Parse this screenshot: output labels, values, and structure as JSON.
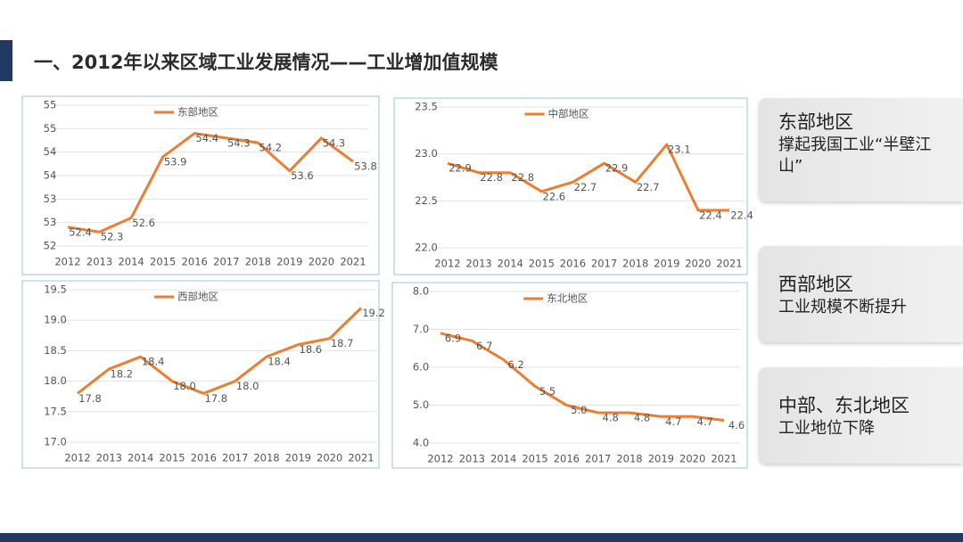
{
  "slide": {
    "title": "一、2012年以来区域工业发展情况——工业增加值规模",
    "notes": [
      {
        "heading": "东部地区",
        "body": "撑起我国工业“半壁江山”"
      },
      {
        "heading": "西部地区",
        "body": "工业规模不断提升"
      },
      {
        "heading": "中部、东北地区",
        "body": "工业地位下降"
      }
    ]
  },
  "chart_data": [
    {
      "type": "line",
      "categories": [
        "2012",
        "2013",
        "2014",
        "2015",
        "2016",
        "2017",
        "2018",
        "2019",
        "2020",
        "2021"
      ],
      "series": [
        {
          "name": "东部地区",
          "color": "#ed7d31",
          "values": [
            52.4,
            52.3,
            52.6,
            53.9,
            54.4,
            54.3,
            54.2,
            53.6,
            54.3,
            53.8
          ]
        }
      ],
      "ylim": [
        52,
        55
      ],
      "yticks": [
        52,
        {
          "value": 52.5,
          "label": "53"
        },
        53,
        {
          "value": 53.5,
          "label": "54"
        },
        54,
        {
          "value": 54.5,
          "label": "55"
        },
        55
      ],
      "grid": true,
      "legend": "top"
    },
    {
      "type": "line",
      "categories": [
        "2012",
        "2013",
        "2014",
        "2015",
        "2016",
        "2017",
        "2018",
        "2019",
        "2020",
        "2021"
      ],
      "series": [
        {
          "name": "中部地区",
          "color": "#ed7d31",
          "values": [
            22.9,
            22.8,
            22.8,
            22.6,
            22.7,
            22.9,
            22.7,
            23.1,
            22.4,
            22.4
          ]
        }
      ],
      "ylim": [
        22,
        23.5
      ],
      "yticks": [
        {
          "value": 22,
          "label": "22.0"
        },
        22.5,
        {
          "value": 23,
          "label": "23.0"
        },
        23.5
      ],
      "grid": true,
      "legend": "top"
    },
    {
      "type": "line",
      "categories": [
        "2012",
        "2013",
        "2014",
        "2015",
        "2016",
        "2017",
        "2018",
        "2019",
        "2020",
        "2021"
      ],
      "series": [
        {
          "name": "西部地区",
          "color": "#ed7d31",
          "values": [
            17.8,
            18.2,
            18.4,
            18,
            17.8,
            18,
            18.4,
            18.6,
            18.7,
            19.2
          ],
          "value_labels": [
            "17.8",
            "18.2",
            "18.4",
            "18.0",
            "17.8",
            "18.0",
            "18.4",
            "18.6",
            "18.7",
            "19.2"
          ]
        }
      ],
      "ylim": [
        17,
        19.5
      ],
      "yticks": [
        {
          "value": 17,
          "label": "17.0"
        },
        17.5,
        {
          "value": 18,
          "label": "18.0"
        },
        18.5,
        {
          "value": 19,
          "label": "19.0"
        },
        19.5
      ],
      "grid": true,
      "legend": "top"
    },
    {
      "type": "line",
      "categories": [
        "2012",
        "2013",
        "2014",
        "2015",
        "2016",
        "2017",
        "2018",
        "2019",
        "2020",
        "2021"
      ],
      "series": [
        {
          "name": "东北地区",
          "color": "#ed7d31",
          "values": [
            6.9,
            6.7,
            6.2,
            5.5,
            5,
            4.8,
            4.8,
            4.7,
            4.7,
            4.6
          ],
          "value_labels": [
            "6.9",
            "6.7",
            "6.2",
            "5.5",
            "5.0",
            "4.8",
            "4.8",
            "4.7",
            "4.7",
            "4.6"
          ]
        }
      ],
      "ylim": [
        4,
        8
      ],
      "yticks": [
        {
          "value": 4,
          "label": "4.0"
        },
        {
          "value": 5,
          "label": "5.0"
        },
        {
          "value": 6,
          "label": "6.0"
        },
        {
          "value": 7,
          "label": "7.0"
        },
        {
          "value": 8,
          "label": "8.0"
        }
      ],
      "grid": true,
      "legend": "top"
    }
  ]
}
